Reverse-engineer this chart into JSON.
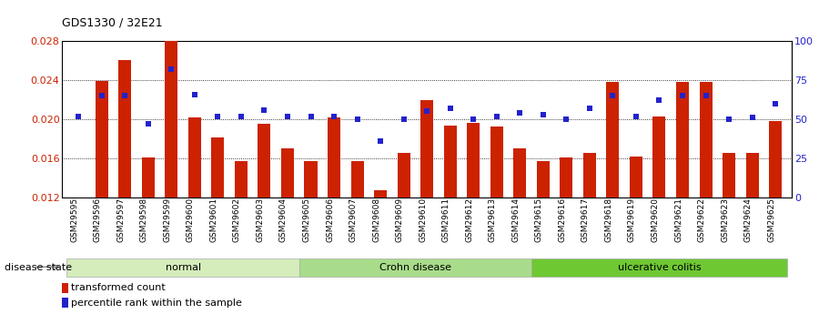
{
  "title": "GDS1330 / 32E21",
  "samples": [
    "GSM29595",
    "GSM29596",
    "GSM29597",
    "GSM29598",
    "GSM29599",
    "GSM29600",
    "GSM29601",
    "GSM29602",
    "GSM29603",
    "GSM29604",
    "GSM29605",
    "GSM29606",
    "GSM29607",
    "GSM29608",
    "GSM29609",
    "GSM29610",
    "GSM29611",
    "GSM29612",
    "GSM29613",
    "GSM29614",
    "GSM29615",
    "GSM29616",
    "GSM29617",
    "GSM29618",
    "GSM29619",
    "GSM29620",
    "GSM29621",
    "GSM29622",
    "GSM29623",
    "GSM29624",
    "GSM29625"
  ],
  "bar_values": [
    0.012,
    0.0239,
    0.026,
    0.0161,
    0.028,
    0.0202,
    0.0182,
    0.0157,
    0.0195,
    0.017,
    0.0157,
    0.0202,
    0.0157,
    0.0128,
    0.0166,
    0.022,
    0.0194,
    0.0196,
    0.0193,
    0.017,
    0.0157,
    0.0161,
    0.0166,
    0.0238,
    0.0162,
    0.0203,
    0.0238,
    0.0238,
    0.0166,
    0.0166,
    0.0198
  ],
  "percentile_values": [
    52,
    65,
    65,
    47,
    82,
    66,
    52,
    52,
    56,
    52,
    52,
    52,
    50,
    36,
    50,
    55,
    57,
    50,
    52,
    54,
    53,
    50,
    57,
    65,
    52,
    62,
    65,
    65,
    50,
    51,
    60
  ],
  "groups": [
    {
      "label": "normal",
      "start": 0,
      "end": 10,
      "color": "#d4edba"
    },
    {
      "label": "Crohn disease",
      "start": 10,
      "end": 20,
      "color": "#a8dc8a"
    },
    {
      "label": "ulcerative colitis",
      "start": 20,
      "end": 31,
      "color": "#6ec832"
    }
  ],
  "ylim_left": [
    0.012,
    0.028
  ],
  "ylim_right": [
    0,
    100
  ],
  "yticks_left": [
    0.012,
    0.016,
    0.02,
    0.024,
    0.028
  ],
  "yticks_right": [
    0,
    25,
    50,
    75,
    100
  ],
  "bar_color": "#cc2200",
  "dot_color": "#2222cc",
  "background_color": "#ffffff",
  "legend_bar_label": "transformed count",
  "legend_dot_label": "percentile rank within the sample",
  "disease_state_label": "disease state"
}
